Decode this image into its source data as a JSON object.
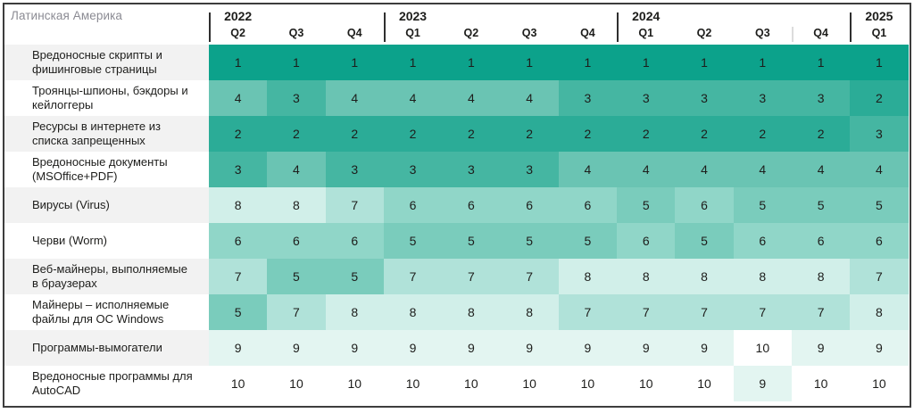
{
  "chart_data": {
    "type": "heatmap",
    "title": "Латинская Америка",
    "legend_position": "none",
    "grid": false,
    "columns": [
      "2022 Q2",
      "2022 Q3",
      "2022 Q4",
      "2023 Q1",
      "2023 Q2",
      "2023 Q3",
      "2023 Q4",
      "2024 Q1",
      "2024 Q2",
      "2024 Q3",
      "2024 Q4",
      "2025 Q1"
    ],
    "year_groups": [
      {
        "year": "2022",
        "quarters": [
          "Q2",
          "Q3",
          "Q4"
        ]
      },
      {
        "year": "2023",
        "quarters": [
          "Q1",
          "Q2",
          "Q3",
          "Q4"
        ]
      },
      {
        "year": "2024",
        "quarters": [
          "Q1",
          "Q2",
          "Q3",
          "Q4"
        ]
      },
      {
        "year": "2025",
        "quarters": [
          "Q1"
        ]
      }
    ],
    "value_range": [
      1,
      10
    ],
    "rows": [
      {
        "label": "Вредоносные скрипты и\nфишинговые страницы",
        "values": [
          1,
          1,
          1,
          1,
          1,
          1,
          1,
          1,
          1,
          1,
          1,
          1
        ]
      },
      {
        "label": "Троянцы-шпионы, бэкдоры и\nкейлоггеры",
        "values": [
          4,
          3,
          4,
          4,
          4,
          4,
          3,
          3,
          3,
          3,
          3,
          2
        ]
      },
      {
        "label": "Ресурсы в интернете из\nсписка запрещенных",
        "values": [
          2,
          2,
          2,
          2,
          2,
          2,
          2,
          2,
          2,
          2,
          2,
          3
        ]
      },
      {
        "label": "Вредоносные документы\n(MSOffice+PDF)",
        "values": [
          3,
          4,
          3,
          3,
          3,
          3,
          4,
          4,
          4,
          4,
          4,
          4
        ]
      },
      {
        "label": "Вирусы (Virus)",
        "values": [
          8,
          8,
          7,
          6,
          6,
          6,
          6,
          5,
          6,
          5,
          5,
          5
        ]
      },
      {
        "label": "Черви (Worm)",
        "values": [
          6,
          6,
          6,
          5,
          5,
          5,
          5,
          6,
          5,
          6,
          6,
          6
        ]
      },
      {
        "label": "Веб-майнеры, выполняемые\nв браузерах",
        "values": [
          7,
          5,
          5,
          7,
          7,
          7,
          8,
          8,
          8,
          8,
          8,
          7
        ]
      },
      {
        "label": "Майнеры – исполняемые\nфайлы для ОС Windows",
        "values": [
          5,
          7,
          8,
          8,
          8,
          8,
          7,
          7,
          7,
          7,
          7,
          8
        ]
      },
      {
        "label": "Программы-вымогатели",
        "values": [
          9,
          9,
          9,
          9,
          9,
          9,
          9,
          9,
          9,
          10,
          9,
          9
        ]
      },
      {
        "label": "Вредоносные программы для\nAutoCAD",
        "values": [
          10,
          10,
          10,
          10,
          10,
          10,
          10,
          10,
          10,
          9,
          10,
          10
        ]
      }
    ],
    "color_scale": {
      "1": "#0ca28b",
      "2": "#2bac97",
      "3": "#45b6a2",
      "4": "#6ac4b3",
      "5": "#7accbc",
      "6": "#90d6c8",
      "7": "#b0e2d9",
      "8": "#d1efe9",
      "9": "#e3f5f1",
      "10": "#ffffff"
    },
    "colors": {
      "text": "#1d1d1b",
      "title_gray": "#8b8b93",
      "border": "#3d3d3d",
      "divider_dark": "#2f2f2f",
      "divider_light": "#dcdcdc",
      "row_shade": "#f2f2f2"
    }
  }
}
